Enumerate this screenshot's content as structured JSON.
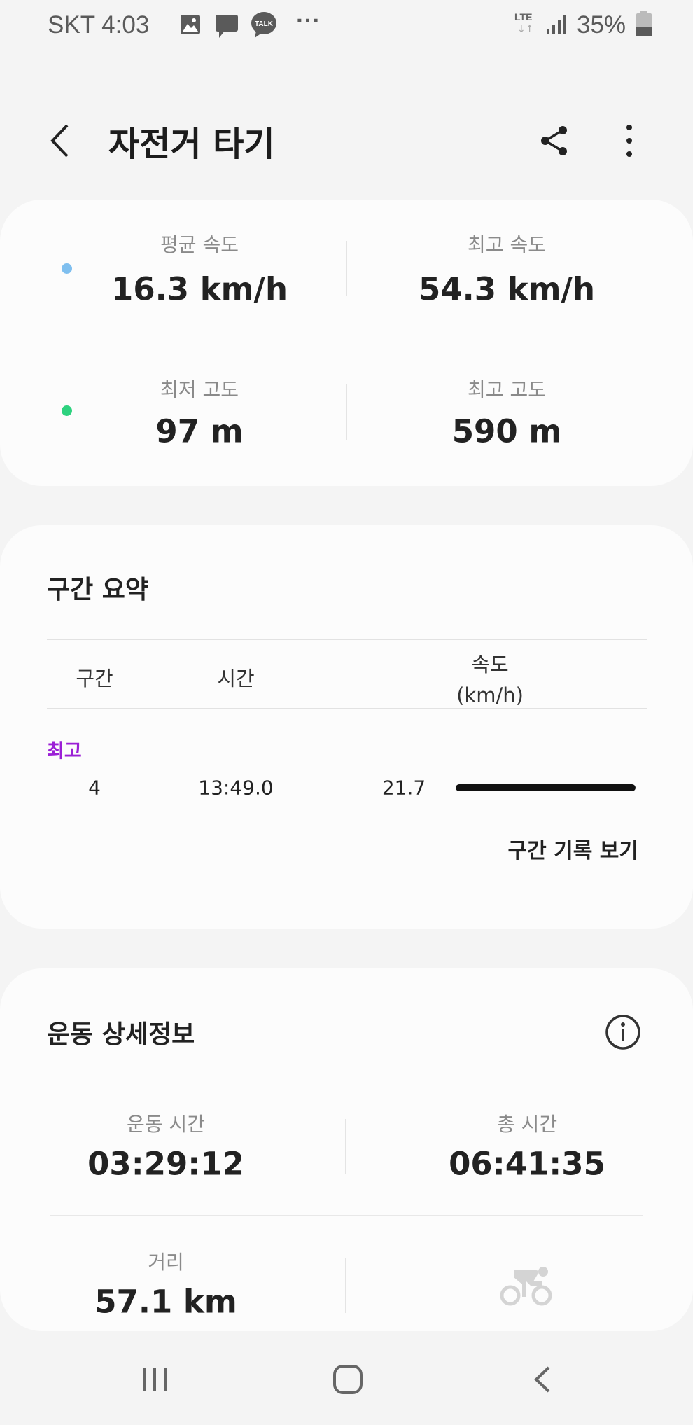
{
  "status_bar": {
    "carrier_time": "SKT 4:03",
    "talk_badge": "TALK",
    "more": "···",
    "network": "LTE",
    "battery": "35%"
  },
  "header": {
    "title": "자전거 타기"
  },
  "summary": {
    "avg_speed": {
      "label": "평균 속도",
      "value": "16.3 km/h"
    },
    "max_speed": {
      "label": "최고 속도",
      "value": "54.3 km/h"
    },
    "min_altitude": {
      "label": "최저 고도",
      "value": "97 m"
    },
    "max_altitude": {
      "label": "최고 고도",
      "value": "590 m"
    },
    "colors": {
      "speed_dot": "#7fbfef",
      "altitude_dot": "#2ed27f"
    }
  },
  "segments": {
    "title": "구간 요약",
    "columns": [
      "구간",
      "시간",
      "속도",
      "(km/h)"
    ],
    "best_label": "최고",
    "best_color": "#9b1fd6",
    "rows": [
      {
        "segment": "4",
        "time": "13:49.0",
        "speed": "21.7",
        "bar_fraction": 1.0
      }
    ],
    "view_records": "구간 기록 보기"
  },
  "details": {
    "title": "운동 상세정보",
    "workout_time": {
      "label": "운동 시간",
      "value": "03:29:12"
    },
    "total_time": {
      "label": "총 시간",
      "value": "06:41:35"
    },
    "distance": {
      "label": "거리",
      "value": "57.1 km"
    }
  }
}
